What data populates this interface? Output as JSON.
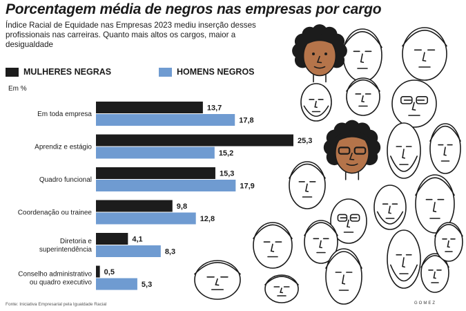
{
  "header": {
    "title": "Porcentagem média de negros nas empresas por cargo",
    "subtitle": "Índice Racial de Equidade nas Empresas 2023 mediu inserção desses profissionais nas carreiras. Quanto mais altos os cargos, maior a desigualdade",
    "unit": "Em %"
  },
  "source": "Fonte: Iniciativa Empresarial pela Igualdade Racial",
  "signature": "GOMEZ",
  "colors": {
    "women": "#1c1c1c",
    "men": "#6f9bd1",
    "skin": "#b5744a",
    "hair": "#1c1c1c"
  },
  "chart_data": {
    "type": "bar",
    "orientation": "horizontal",
    "title": "Porcentagem média de negros nas empresas por cargo",
    "unit": "Em %",
    "categories": [
      "Em toda empresa",
      "Aprendiz e estágio",
      "Quadro funcional",
      "Coordenação ou trainee",
      "Diretoria e superintendência",
      "Conselho administrativo ou quadro executivo"
    ],
    "category_lines": [
      [
        "Em toda empresa"
      ],
      [
        "Aprendiz e estágio"
      ],
      [
        "Quadro funcional"
      ],
      [
        "Coordenação ou trainee"
      ],
      [
        "Diretoria e",
        "superintendência"
      ],
      [
        "Conselho administrativo",
        "ou quadro executivo"
      ]
    ],
    "series": [
      {
        "name": "MULHERES NEGRAS",
        "values": [
          13.7,
          25.3,
          15.3,
          9.8,
          4.1,
          0.5
        ],
        "labels": [
          "13,7",
          "25,3",
          "15,3",
          "9,8",
          "4,1",
          "0,5"
        ]
      },
      {
        "name": "HOMENS NEGROS",
        "values": [
          17.8,
          15.2,
          17.9,
          12.8,
          8.3,
          5.3
        ],
        "labels": [
          "17,8",
          "15,2",
          "17,9",
          "12,8",
          "8,3",
          "5,3"
        ]
      }
    ],
    "xlim": [
      0,
      25.3
    ],
    "grid": false,
    "legend_position": "top"
  }
}
